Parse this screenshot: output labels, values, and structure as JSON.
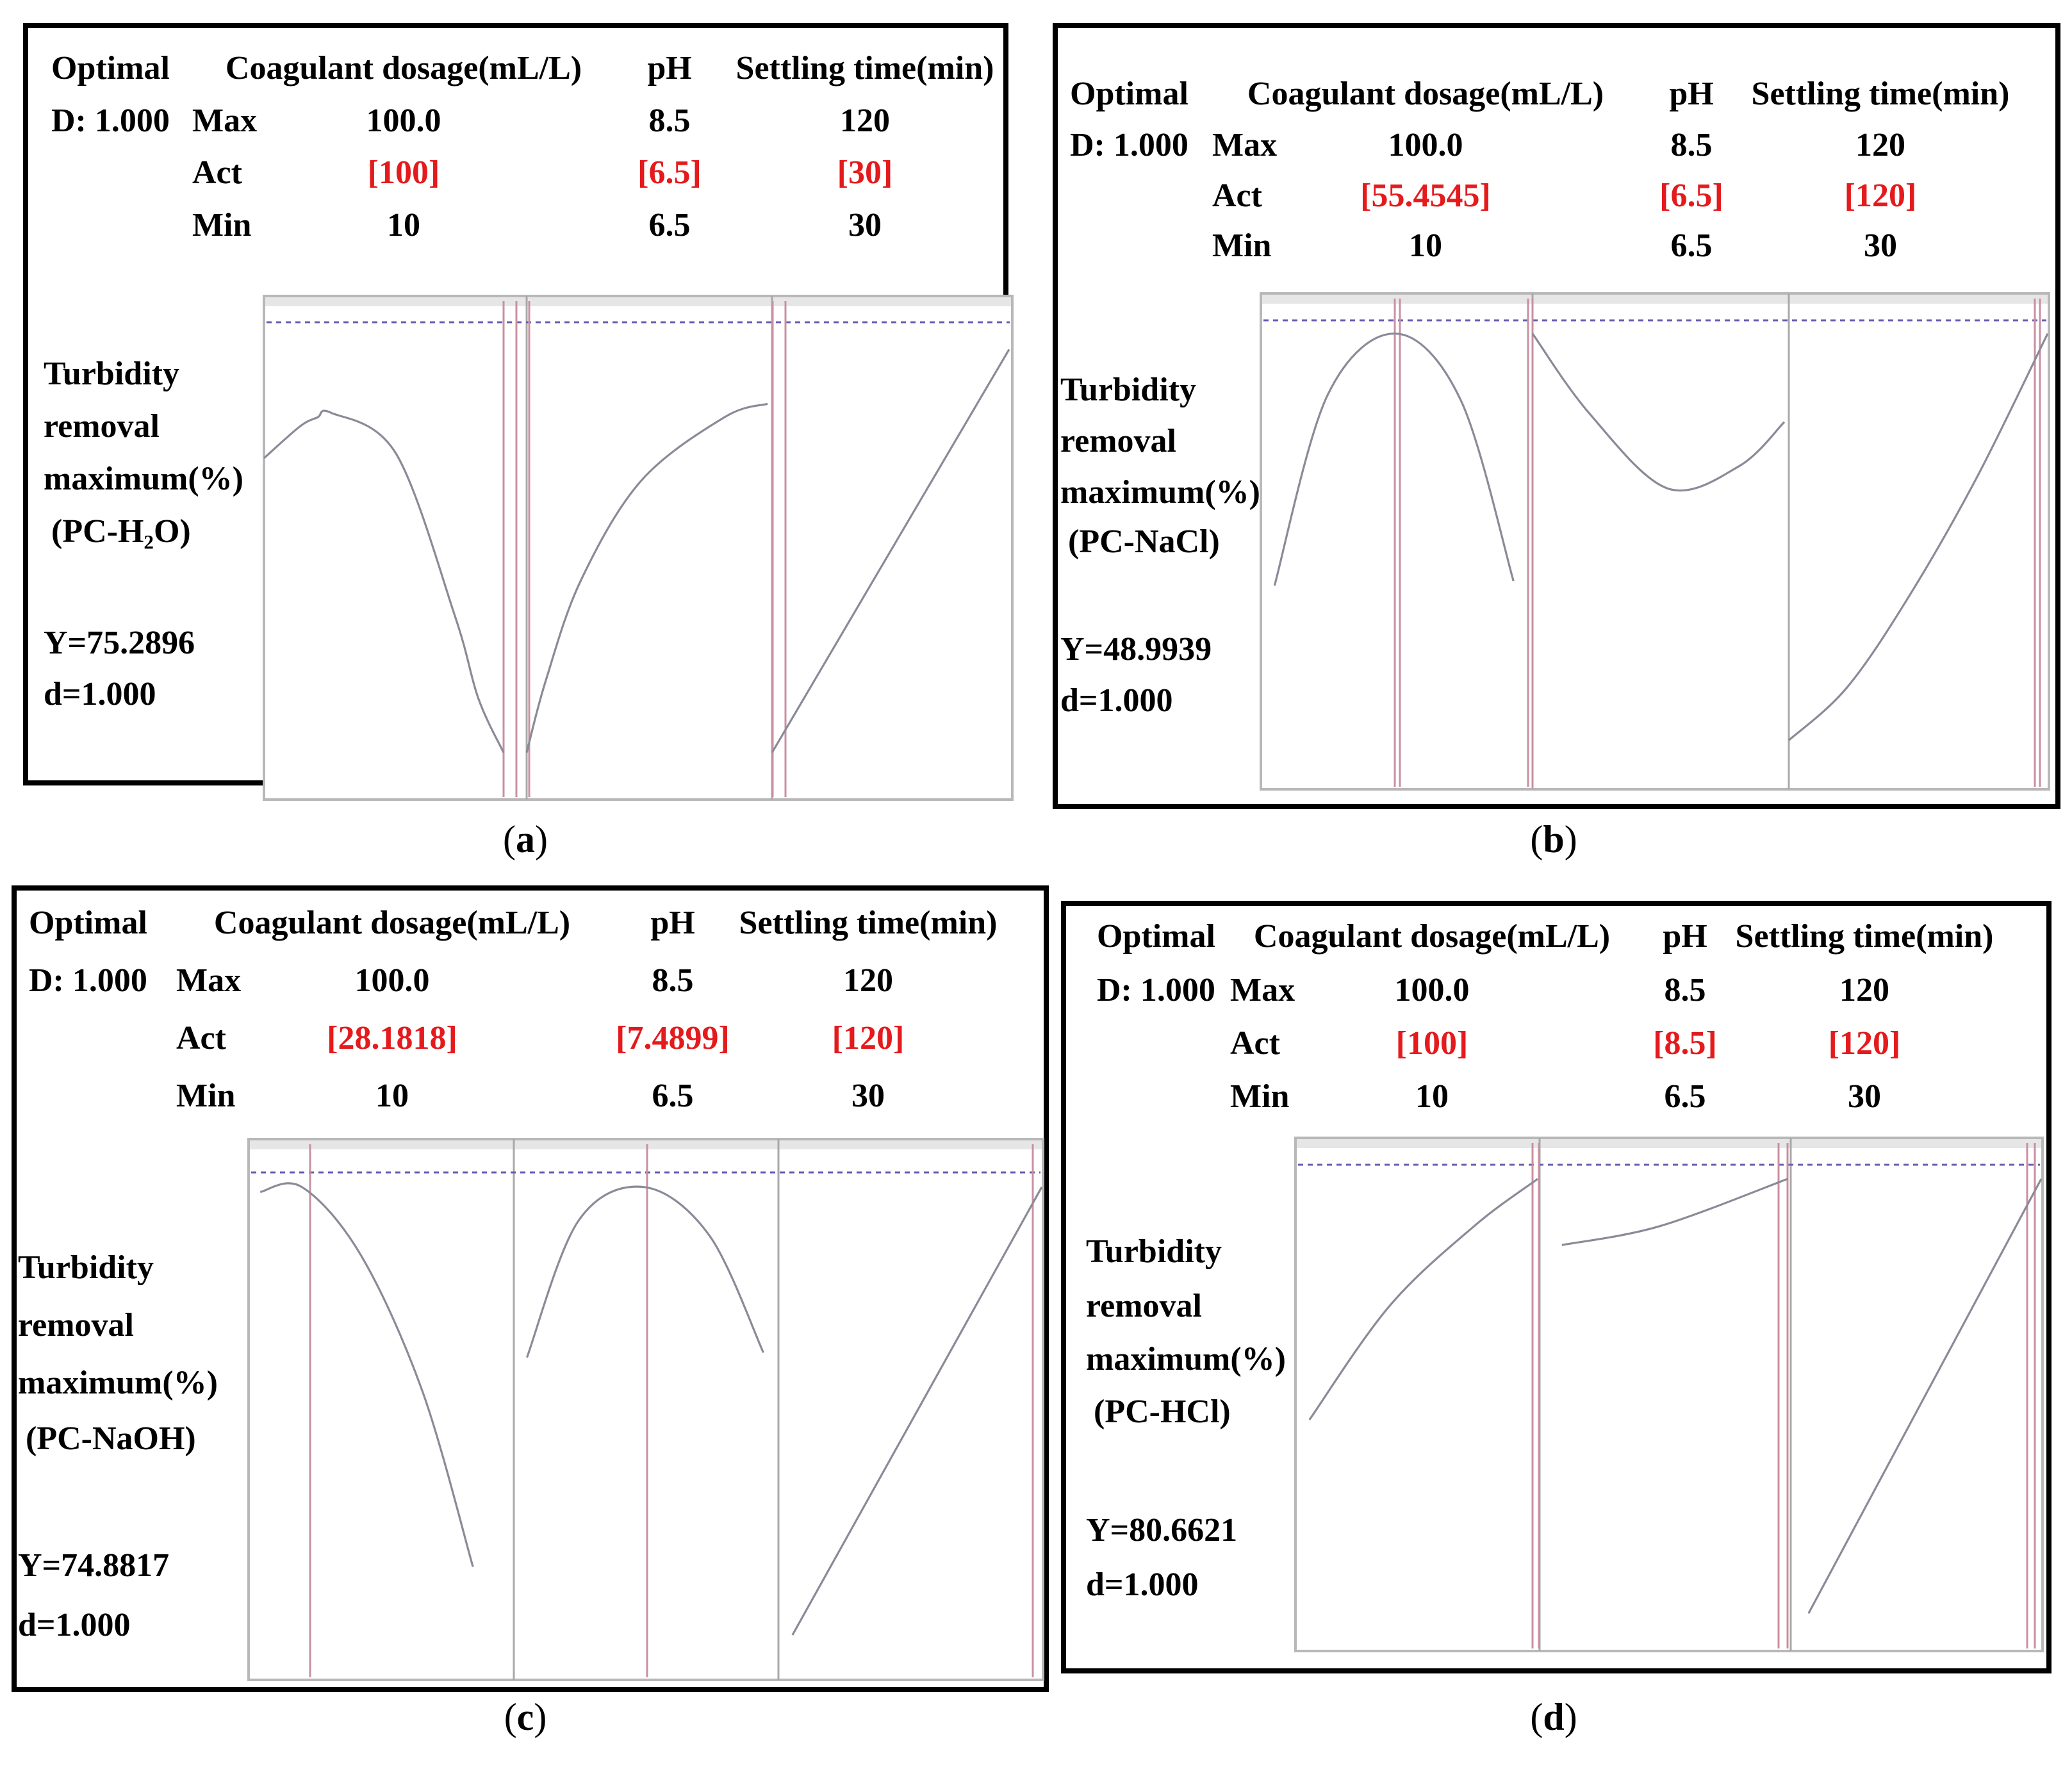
{
  "chart_data": [
    {
      "type": "line",
      "caption": "a",
      "header": {
        "optimal": "Optimal",
        "desirability": "D: 1.000"
      },
      "row_labels": {
        "max": "Max",
        "act": "Act",
        "min": "Min"
      },
      "factors": [
        {
          "name": "Coagulant dosage(mL/L)",
          "max": "100.0",
          "act": "[100]",
          "min": "10",
          "range": [
            10,
            100
          ],
          "actual": 100
        },
        {
          "name": "pH",
          "max": "8.5",
          "act": "[6.5]",
          "min": "6.5",
          "range": [
            6.5,
            8.5
          ],
          "actual": 6.5
        },
        {
          "name": "Settling time(min)",
          "max": "120",
          "act": "[30]",
          "min": "30",
          "range": [
            30,
            120
          ],
          "actual": 30
        }
      ],
      "response": {
        "lines": [
          "Turbidity",
          "removal",
          "maximum(%)",
          "(PC-H₂O)"
        ],
        "y_text": "Y=75.2896",
        "d_text": "d=1.000",
        "y_value": 75.2896
      },
      "curves": [
        {
          "x": [
            10,
            23.5,
            30.1,
            35.3,
            59.6,
            81.8,
            90.5,
            100
          ],
          "y": [
            0.7,
            0.77,
            0.79,
            0.8,
            0.71,
            0.35,
            0.17,
            0.05
          ]
        },
        {
          "x": [
            6.5,
            6.66,
            6.95,
            7.45,
            8.14,
            8.5
          ],
          "y": [
            0.05,
            0.21,
            0.43,
            0.65,
            0.79,
            0.82
          ]
        },
        {
          "x": [
            30,
            120
          ],
          "y": [
            0.05,
            0.94
          ]
        }
      ]
    },
    {
      "type": "line",
      "caption": "b",
      "header": {
        "optimal": "Optimal",
        "desirability": "D: 1.000"
      },
      "row_labels": {
        "max": "Max",
        "act": "Act",
        "min": "Min"
      },
      "factors": [
        {
          "name": "Coagulant dosage(mL/L)",
          "max": "100.0",
          "act": "[55.4545]",
          "min": "10",
          "range": [
            10,
            100
          ],
          "actual": 55.4545
        },
        {
          "name": "pH",
          "max": "8.5",
          "act": "[6.5]",
          "min": "6.5",
          "range": [
            6.5,
            8.5
          ],
          "actual": 6.5
        },
        {
          "name": "Settling time(min)",
          "max": "120",
          "act": "[120]",
          "min": "30",
          "range": [
            30,
            120
          ],
          "actual": 120
        }
      ],
      "response": {
        "lines": [
          "Turbidity",
          "removal",
          "maximum(%)",
          "(PC-NaCl)"
        ],
        "y_text": "Y=48.9939",
        "d_text": "d=1.000",
        "y_value": 48.9939
      },
      "curves": [
        {
          "x": [
            14.6,
            32.4,
            55.4,
            77.3,
            95.1
          ],
          "y": [
            0.4,
            0.83,
            0.97,
            0.82,
            0.41
          ]
        },
        {
          "x": [
            6.5,
            6.95,
            7.57,
            8.14,
            8.5
          ],
          "y": [
            0.97,
            0.79,
            0.62,
            0.67,
            0.77
          ]
        },
        {
          "x": [
            30,
            50.3,
            72.2,
            95.8,
            120
          ],
          "y": [
            0.05,
            0.17,
            0.38,
            0.65,
            0.97
          ]
        }
      ]
    },
    {
      "type": "line",
      "caption": "c",
      "header": {
        "optimal": "Optimal",
        "desirability": "D: 1.000"
      },
      "row_labels": {
        "max": "Max",
        "act": "Act",
        "min": "Min"
      },
      "factors": [
        {
          "name": "Coagulant dosage(mL/L)",
          "max": "100.0",
          "act": "[28.1818]",
          "min": "10",
          "range": [
            10,
            100
          ],
          "actual": 28.1818
        },
        {
          "name": "pH",
          "max": "8.5",
          "act": "[7.4899]",
          "min": "6.5",
          "range": [
            6.5,
            8.5
          ],
          "actual": 7.4899
        },
        {
          "name": "Settling time(min)",
          "max": "120",
          "act": "[120]",
          "min": "30",
          "range": [
            30,
            120
          ],
          "actual": 120
        }
      ],
      "response": {
        "lines": [
          "Turbidity",
          "removal",
          "maximum(%)",
          "(PC-NaOH)"
        ],
        "y_text": "Y=74.8817",
        "d_text": "d=1.000",
        "y_value": 74.8817
      },
      "curves": [
        {
          "x": [
            14.0,
            28.2,
            48.3,
            69.3,
            86.5
          ],
          "y": [
            0.96,
            0.97,
            0.83,
            0.55,
            0.19
          ]
        },
        {
          "x": [
            6.6,
            6.99,
            7.49,
            7.99,
            8.4
          ],
          "y": [
            0.62,
            0.9,
            0.97,
            0.87,
            0.63
          ]
        },
        {
          "x": [
            34.8,
            120
          ],
          "y": [
            0.05,
            0.97
          ]
        }
      ]
    },
    {
      "type": "line",
      "caption": "d",
      "header": {
        "optimal": "Optimal",
        "desirability": "D: 1.000"
      },
      "row_labels": {
        "max": "Max",
        "act": "Act",
        "min": "Min"
      },
      "factors": [
        {
          "name": "Coagulant dosage(mL/L)",
          "max": "100.0",
          "act": "[100]",
          "min": "10",
          "range": [
            10,
            100
          ],
          "actual": 100
        },
        {
          "name": "pH",
          "max": "8.5",
          "act": "[8.5]",
          "min": "6.5",
          "range": [
            6.5,
            8.5
          ],
          "actual": 8.5
        },
        {
          "name": "Settling time(min)",
          "max": "120",
          "act": "[120]",
          "min": "30",
          "range": [
            30,
            120
          ],
          "actual": 120
        }
      ],
      "response": {
        "lines": [
          "Turbidity",
          "removal",
          "maximum(%)",
          "(PC-HCl)"
        ],
        "y_text": "Y=80.6621",
        "d_text": "d=1.000",
        "y_value": 80.6621
      },
      "curves": [
        {
          "x": [
            15.2,
            44.8,
            76.4,
            100
          ],
          "y": [
            0.46,
            0.7,
            0.87,
            0.97
          ]
        },
        {
          "x": [
            6.68,
            7.47,
            8.5
          ],
          "y": [
            0.83,
            0.87,
            0.97
          ]
        },
        {
          "x": [
            36.4,
            120
          ],
          "y": [
            0.05,
            0.97
          ]
        }
      ]
    }
  ]
}
